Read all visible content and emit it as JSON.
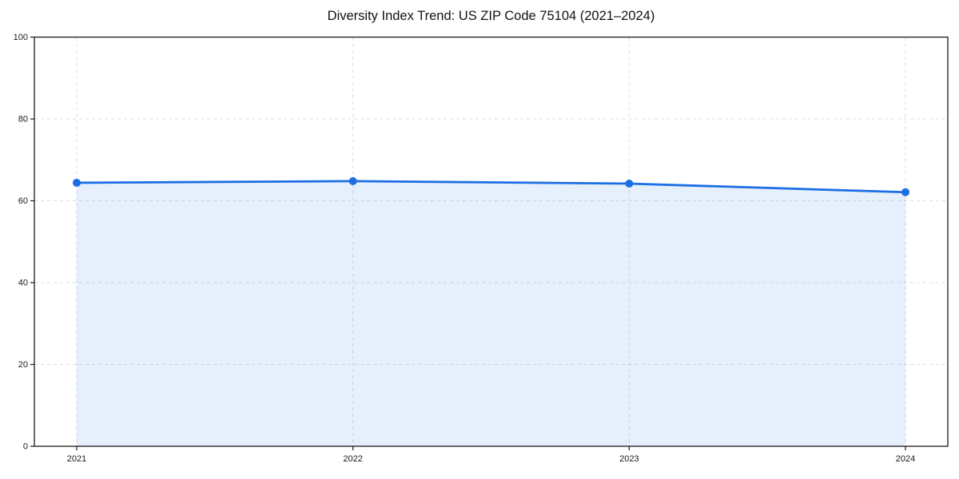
{
  "chart_data": {
    "type": "area",
    "title": "Diversity Index Trend: US ZIP Code 75104 (2021–2024)",
    "x": [
      "2021",
      "2022",
      "2023",
      "2024"
    ],
    "series": [
      {
        "name": "Diversity Index",
        "values": [
          64.4,
          64.8,
          64.2,
          62.1
        ]
      }
    ],
    "xlabel": "",
    "ylabel": "",
    "ylim": [
      0,
      100
    ],
    "yticks": [
      0,
      20,
      40,
      60,
      80,
      100
    ],
    "grid": true,
    "grid_style": "dashed",
    "legend": false,
    "colors": {
      "line": "#1b6ee3",
      "marker": "#1b6ee3",
      "fill": "rgba(27,110,227,0.11)",
      "gridline": "#dcdcdc",
      "spine": "#1a1a1a",
      "tick_text": "#1a1a1a",
      "background": "#ffffff"
    }
  }
}
